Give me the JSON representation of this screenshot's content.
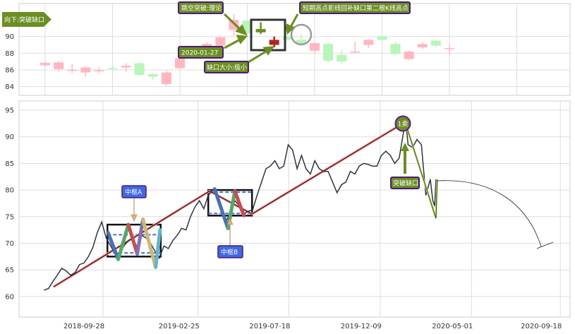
{
  "chart_data": [
    {
      "type": "candlestick",
      "panel": "top",
      "ylim": [
        83,
        93.5
      ],
      "yticks": [
        "84",
        "86",
        "88",
        "90"
      ],
      "grid": true,
      "colors": {
        "rise": "#ffb6c1",
        "fall": "#b8f5b8",
        "gap_up": "#6b8e23",
        "gap_down": "#b22222"
      },
      "candles": [
        {
          "o": 86.55,
          "h": 87.0,
          "l": 86.4,
          "c": 86.85
        },
        {
          "o": 86.1,
          "h": 87.0,
          "l": 85.8,
          "c": 86.9
        },
        {
          "o": 85.9,
          "h": 86.7,
          "l": 85.6,
          "c": 86.0
        },
        {
          "o": 85.7,
          "h": 86.4,
          "l": 85.2,
          "c": 86.3
        },
        {
          "o": 85.88,
          "h": 86.3,
          "l": 85.6,
          "c": 85.95
        },
        {
          "o": 86.25,
          "h": 86.6,
          "l": 85.9,
          "c": 86.2
        },
        {
          "o": 86.3,
          "h": 86.8,
          "l": 85.8,
          "c": 86.5
        },
        {
          "o": 86.8,
          "h": 87.0,
          "l": 85.2,
          "c": 85.4
        },
        {
          "o": 85.5,
          "h": 85.6,
          "l": 84.8,
          "c": 85.2
        },
        {
          "o": 84.3,
          "h": 85.9,
          "l": 84.1,
          "c": 85.7
        },
        {
          "o": 86.2,
          "h": 87.5,
          "l": 86.1,
          "c": 87.4
        },
        null,
        {
          "o": 88.7,
          "h": 89.3,
          "l": 88.6,
          "c": 89.1
        },
        {
          "o": 88.9,
          "h": 90.1,
          "l": 88.8,
          "c": 89.9
        },
        {
          "o": 90.8,
          "h": 92.7,
          "l": 90.1,
          "c": 92.0
        },
        {
          "o": 91.9,
          "h": 92.0,
          "l": 90.3,
          "c": 90.4
        },
        {
          "o": 90.5,
          "h": 91.7,
          "l": 90.3,
          "c": 90.9,
          "color": "gap_up"
        },
        {
          "o": 89.6,
          "h": 90.0,
          "l": 88.7,
          "c": 89.0,
          "color": "gap_down"
        },
        {
          "o": 90.0,
          "h": 90.2,
          "l": 89.5,
          "c": 89.6
        },
        {
          "o": 89.6,
          "h": 90.3,
          "l": 89.0,
          "c": 89.1
        },
        {
          "o": 88.3,
          "h": 89.3,
          "l": 88.0,
          "c": 89.2
        },
        {
          "o": 89.1,
          "h": 89.3,
          "l": 86.9,
          "c": 87.1
        },
        {
          "o": 87.8,
          "h": 88.4,
          "l": 86.7,
          "c": 87.0
        },
        {
          "o": 88.1,
          "h": 89.4,
          "l": 88.1,
          "c": 88.2
        },
        {
          "o": 89.0,
          "h": 89.7,
          "l": 88.6,
          "c": 89.6
        },
        {
          "o": 90.0,
          "h": 90.1,
          "l": 89.5,
          "c": 89.6
        },
        {
          "o": 89.1,
          "h": 89.4,
          "l": 87.7,
          "c": 87.9
        },
        {
          "o": 87.3,
          "h": 88.3,
          "l": 87.2,
          "c": 88.2
        },
        {
          "o": 88.7,
          "h": 89.3,
          "l": 88.5,
          "c": 89.1
        },
        {
          "o": 89.5,
          "h": 89.6,
          "l": 88.7,
          "c": 88.9
        },
        {
          "o": 88.55,
          "h": 89.1,
          "l": 87.7,
          "c": 88.6
        }
      ],
      "annotations": {
        "left_arrow_label": "向下:突破缺口",
        "theory": "跳空突破:理论",
        "date": "2020-01-27",
        "gap_size": "缺口大小:极小",
        "fill_note": "短期高点影线回补缺口第二根K线高点"
      }
    },
    {
      "type": "line",
      "panel": "bottom",
      "ylim": [
        55.5,
        96.8
      ],
      "xlim": [
        "2018-06-15",
        "2020-10-20"
      ],
      "yticks": [
        "60",
        "65",
        "70",
        "75",
        "80",
        "85",
        "90",
        "95"
      ],
      "xticks": [
        "2018-09-28",
        "2019-02-25",
        "2019-07-18",
        "2019-12-09",
        "2020-05-01",
        "2020-09-18"
      ],
      "grid": true,
      "colors": {
        "price": "#2f3440",
        "trend": "#8b0000",
        "zigzag_a": [
          "#4a6fb5",
          "#55a868",
          "#c44e52",
          "#8172b2",
          "#ccb974",
          "#64b5cd"
        ],
        "zigzag_b": [
          "#4a6fb5",
          "#55a868",
          "#c44e52"
        ],
        "label_bg": "#4169e1",
        "sell_bg": "#6b8e23",
        "sell_border": "#5a1a8a"
      },
      "price": [
        [
          "2018-07-27",
          61.2
        ],
        [
          "2018-08-03",
          61.5
        ],
        [
          "2018-08-10",
          62.8
        ],
        [
          "2018-08-17",
          64
        ],
        [
          "2018-08-24",
          65.3
        ],
        [
          "2018-08-31",
          64.8
        ],
        [
          "2018-09-07",
          64
        ],
        [
          "2018-09-14",
          64.5
        ],
        [
          "2018-09-21",
          66
        ],
        [
          "2018-09-28",
          66.3
        ],
        [
          "2018-10-05",
          67.5
        ],
        [
          "2018-10-12",
          69.2
        ],
        [
          "2018-10-19",
          72
        ],
        [
          "2018-10-26",
          74
        ],
        [
          "2018-11-02",
          71
        ],
        [
          "2018-11-09",
          69.5
        ],
        [
          "2018-11-16",
          68
        ],
        [
          "2018-11-23",
          68.2
        ],
        [
          "2018-11-30",
          69.5
        ],
        [
          "2018-12-07",
          70.5
        ],
        [
          "2018-12-14",
          71
        ],
        [
          "2018-12-21",
          69.2
        ],
        [
          "2018-12-28",
          71.5
        ],
        [
          "2019-01-04",
          71
        ],
        [
          "2019-01-11",
          70
        ],
        [
          "2019-01-18",
          68.5
        ],
        [
          "2019-01-25",
          67.2
        ],
        [
          "2019-02-01",
          69.5
        ],
        [
          "2019-02-08",
          69
        ],
        [
          "2019-02-15",
          70.5
        ],
        [
          "2019-02-22",
          71.5
        ],
        [
          "2019-03-01",
          72.8
        ],
        [
          "2019-03-08",
          72.5
        ],
        [
          "2019-03-15",
          75
        ],
        [
          "2019-03-22",
          76.8
        ],
        [
          "2019-03-29",
          78
        ],
        [
          "2019-04-05",
          76.5
        ],
        [
          "2019-04-12",
          79
        ],
        [
          "2019-04-19",
          80
        ],
        [
          "2019-04-26",
          79
        ],
        [
          "2019-05-03",
          77
        ],
        [
          "2019-05-10",
          74
        ],
        [
          "2019-05-17",
          76
        ],
        [
          "2019-05-24",
          78
        ],
        [
          "2019-05-31",
          77
        ],
        [
          "2019-06-07",
          75.5
        ],
        [
          "2019-06-14",
          76
        ],
        [
          "2019-06-21",
          76.3
        ],
        [
          "2019-06-28",
          79
        ],
        [
          "2019-07-05",
          81.5
        ],
        [
          "2019-07-12",
          84
        ],
        [
          "2019-07-19",
          84.5
        ],
        [
          "2019-07-26",
          85.5
        ],
        [
          "2019-08-02",
          84
        ],
        [
          "2019-08-09",
          84.5
        ],
        [
          "2019-08-16",
          88.5
        ],
        [
          "2019-08-23",
          87.5
        ],
        [
          "2019-08-30",
          84
        ],
        [
          "2019-09-06",
          86.5
        ],
        [
          "2019-09-13",
          84
        ],
        [
          "2019-09-20",
          83
        ],
        [
          "2019-09-27",
          85.5
        ],
        [
          "2019-10-04",
          84
        ],
        [
          "2019-10-11",
          83.5
        ],
        [
          "2019-10-18",
          83.5
        ],
        [
          "2019-10-25",
          81.5
        ],
        [
          "2019-11-01",
          79.5
        ],
        [
          "2019-11-08",
          81
        ],
        [
          "2019-11-15",
          81.5
        ],
        [
          "2019-11-22",
          83.5
        ],
        [
          "2019-11-29",
          83
        ],
        [
          "2019-12-06",
          84.5
        ],
        [
          "2019-12-13",
          85
        ],
        [
          "2019-12-20",
          84.8
        ],
        [
          "2019-12-27",
          84.5
        ],
        [
          "2020-01-03",
          84.5
        ],
        [
          "2020-01-10",
          86.5
        ],
        [
          "2020-01-17",
          87.3
        ],
        [
          "2020-01-24",
          86.5
        ],
        [
          "2020-01-31",
          85
        ],
        [
          "2020-02-07",
          86
        ],
        [
          "2020-02-14",
          91
        ],
        [
          "2020-02-17",
          93.5
        ],
        [
          "2020-02-21",
          88.5
        ],
        [
          "2020-02-28",
          88
        ],
        [
          "2020-03-06",
          89.5
        ],
        [
          "2020-03-13",
          88.5
        ],
        [
          "2020-03-20",
          79
        ],
        [
          "2020-03-27",
          82
        ],
        [
          "2020-03-31",
          78
        ],
        [
          "2020-04-03",
          77
        ],
        [
          "2020-04-05",
          82
        ]
      ],
      "trend_line": [
        [
          "2018-08-11",
          61.8
        ],
        [
          "2019-04-14",
          79.8
        ],
        [
          "2019-06-20",
          75.5
        ],
        [
          "2020-02-10",
          92.3
        ]
      ],
      "pivot_a": {
        "label": "中枢A",
        "from": "2018-11-04",
        "to": "2019-01-27",
        "high": 73.5,
        "low": 67.5,
        "dash_high": 71.6,
        "dash_low": 68.2,
        "zigzag": [
          [
            "2018-11-05",
            72
          ],
          [
            "2018-11-21",
            67
          ],
          [
            "2018-12-07",
            73.5
          ],
          [
            "2018-12-21",
            68
          ],
          [
            "2018-12-30",
            74.5
          ],
          [
            "2019-01-19",
            65.5
          ],
          [
            "2019-01-26",
            72.5
          ]
        ]
      },
      "pivot_b": {
        "label": "中枢B",
        "from": "2019-04-12",
        "to": "2019-06-20",
        "high": 80,
        "low": 75.2,
        "dash_high": 79.6,
        "dash_low": 75.6,
        "zigzag": [
          [
            "2019-04-22",
            80.2
          ],
          [
            "2019-05-13",
            72.8
          ],
          [
            "2019-05-24",
            79.8
          ],
          [
            "2019-06-07",
            75.2
          ]
        ]
      },
      "sell_point": {
        "label": "1卖",
        "date": "2020-02-17",
        "value": 92.5
      },
      "gap_label": "突破缺口",
      "breakdown_line": [
        [
          "2020-02-17",
          92.5
        ],
        [
          "2020-04-05",
          74.7
        ],
        [
          "2020-04-07",
          82
        ]
      ]
    }
  ]
}
